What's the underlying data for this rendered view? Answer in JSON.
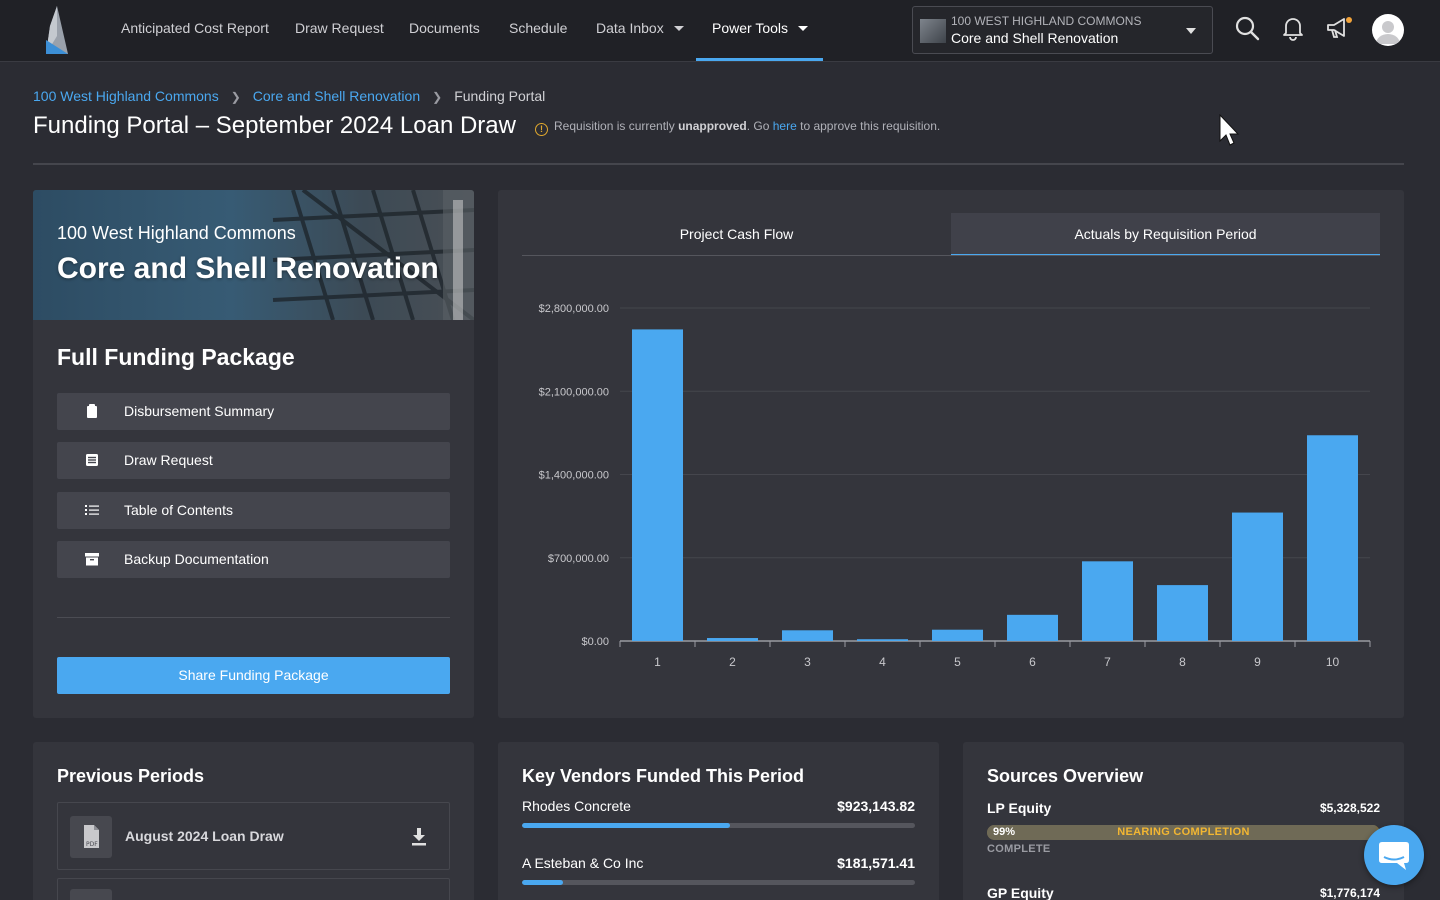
{
  "nav": {
    "items": [
      "Anticipated Cost Report",
      "Draw Request",
      "Documents",
      "Schedule",
      "Data Inbox",
      "Power Tools"
    ],
    "project_selector": {
      "top": "100 WEST HIGHLAND COMMONS",
      "bottom": "Core and Shell Renovation"
    }
  },
  "breadcrumb": [
    "100 West Highland Commons",
    "Core and Shell Renovation",
    "Funding Portal"
  ],
  "page_title": "Funding Portal – September 2024 Loan Draw",
  "warning": {
    "pre": "Requisition is currently ",
    "status": "unapproved",
    "mid": ". Go ",
    "link": "here",
    "post": " to approve this requisition."
  },
  "project_card": {
    "subtitle": "100 West Highland Commons",
    "title": "Core and Shell Renovation",
    "package_title": "Full Funding Package",
    "buttons": [
      "Disbursement Summary",
      "Draw Request",
      "Table of Contents",
      "Backup Documentation"
    ],
    "share_label": "Share Funding Package"
  },
  "chart_tabs": [
    "Project Cash Flow",
    "Actuals by Requisition Period"
  ],
  "chart_data": {
    "type": "bar",
    "title": "Actuals by Requisition Period",
    "categories": [
      "1",
      "2",
      "3",
      "4",
      "5",
      "6",
      "7",
      "8",
      "9",
      "10"
    ],
    "values": [
      2620000,
      25000,
      90000,
      15000,
      95000,
      220000,
      670000,
      470000,
      1080000,
      1730000
    ],
    "yticks": [
      "$0.00",
      "$700,000.00",
      "$1,400,000.00",
      "$2,100,000.00",
      "$2,800,000.00"
    ],
    "ylim": [
      0,
      2800000
    ],
    "color": "#4aa8f0"
  },
  "previous_periods": {
    "title": "Previous Periods",
    "items": [
      "August 2024 Loan Draw"
    ]
  },
  "vendors": {
    "title": "Key Vendors Funded This Period",
    "items": [
      {
        "name": "Rhodes Concrete",
        "amount": "$923,143.82",
        "share": 0.53
      },
      {
        "name": "A Esteban & Co Inc",
        "amount": "$181,571.41",
        "share": 0.105
      }
    ]
  },
  "sources": {
    "title": "Sources Overview",
    "items": [
      {
        "name": "LP Equity",
        "amount": "$5,328,522",
        "percent": "99%",
        "status": "NEARING COMPLETION",
        "complete_label": "COMPLETE",
        "fill": 0.99
      },
      {
        "name": "GP Equity",
        "amount": "$1,776,174"
      }
    ]
  }
}
